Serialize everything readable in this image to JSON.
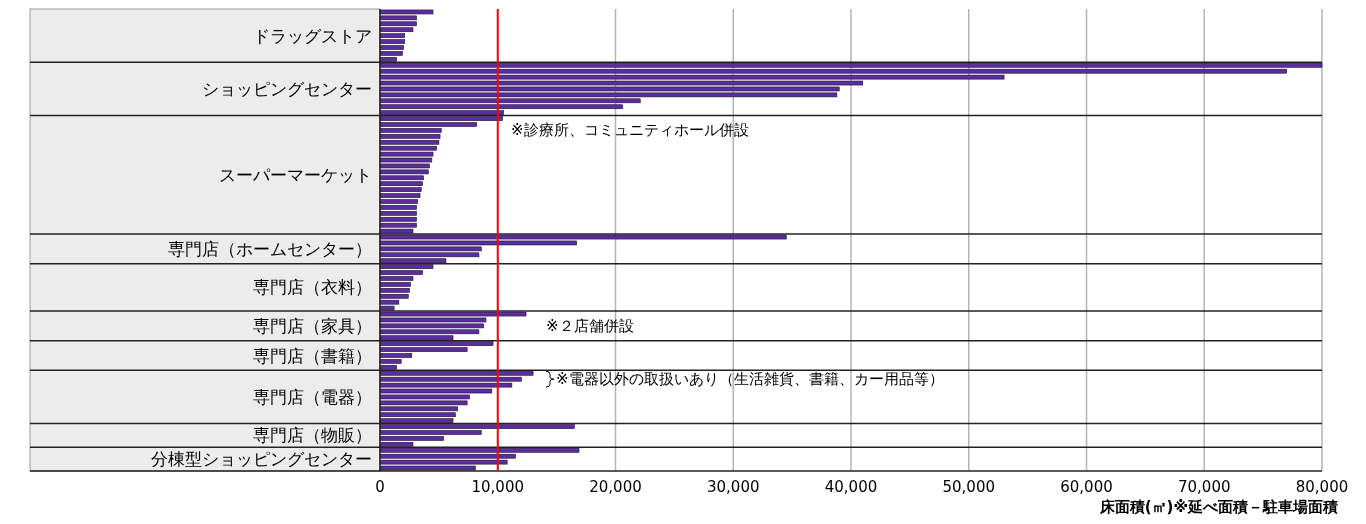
{
  "chart_data": {
    "type": "bar",
    "orientation": "horizontal",
    "xlabel": "床面積(㎡)※延べ面積－駐車場面積",
    "categories": [
      null,
      null,
      null,
      null,
      null,
      null,
      null,
      null,
      null,
      null,
      null,
      null,
      null,
      null,
      null,
      null,
      null,
      null,
      null,
      null,
      null,
      null,
      null,
      null,
      null,
      null,
      null,
      null,
      null,
      null,
      null,
      null,
      null,
      null,
      null,
      null,
      null,
      null,
      null,
      null,
      null,
      null,
      null,
      null,
      null,
      null,
      null,
      null,
      null,
      null,
      null,
      null,
      null,
      null,
      null,
      null,
      null,
      null,
      null,
      null,
      null,
      null,
      null,
      null,
      null,
      null,
      null,
      null,
      null,
      null,
      null,
      null,
      null,
      null,
      null,
      null,
      null,
      null
    ],
    "series": [
      {
        "name": "ドラッグストア",
        "color": "#5c2d9c",
        "values": [
          4500,
          3100,
          3100,
          2800,
          2100,
          2100,
          2000,
          1900,
          1400,
          null,
          null,
          null,
          null,
          null,
          null,
          null,
          null,
          null,
          null,
          null,
          null,
          null,
          null,
          null,
          null,
          null,
          null,
          null,
          null,
          null,
          null,
          null,
          null,
          null,
          null,
          null,
          null,
          null,
          null,
          null,
          null,
          null,
          null,
          null,
          null,
          null,
          null,
          null,
          null,
          null,
          null,
          null,
          null,
          null,
          null,
          null,
          null,
          null,
          null,
          null,
          null,
          null,
          null,
          null,
          null,
          null,
          null,
          null,
          null,
          null,
          null,
          null,
          null,
          null,
          null,
          null,
          null,
          null
        ]
      },
      {
        "name": "ショッピングセンター",
        "color": "#5c2d9c",
        "values": [
          null,
          null,
          null,
          null,
          null,
          null,
          null,
          null,
          null,
          80000,
          77000,
          53000,
          41000,
          39000,
          38800,
          22100,
          20600,
          10500,
          null,
          null,
          null,
          null,
          null,
          null,
          null,
          null,
          null,
          null,
          null,
          null,
          null,
          null,
          null,
          null,
          null,
          null,
          null,
          null,
          null,
          null,
          null,
          null,
          null,
          null,
          null,
          null,
          null,
          null,
          null,
          null,
          null,
          null,
          null,
          null,
          null,
          null,
          null,
          null,
          null,
          null,
          null,
          null,
          null,
          null,
          null,
          null,
          null,
          null,
          null,
          null,
          null,
          null,
          null,
          null,
          null,
          null,
          null,
          null
        ]
      },
      {
        "name": "スーパーマーケット",
        "color": "#5c2d9c",
        "values": [
          null,
          null,
          null,
          null,
          null,
          null,
          null,
          null,
          null,
          null,
          null,
          null,
          null,
          null,
          null,
          null,
          null,
          null,
          10400,
          8200,
          5200,
          5100,
          5000,
          4800,
          4500,
          4400,
          4200,
          4100,
          3700,
          3600,
          3500,
          3400,
          3200,
          3100,
          3100,
          3100,
          3100,
          2800,
          null,
          null,
          null,
          null,
          null,
          null,
          null,
          null,
          null,
          null,
          null,
          null,
          null,
          null,
          null,
          null,
          null,
          null,
          null,
          null,
          null,
          null,
          null,
          null,
          null,
          null,
          null,
          null,
          null,
          null,
          null,
          null,
          null,
          null,
          null,
          null,
          null,
          null,
          null,
          null
        ]
      },
      {
        "name": "専門店（ホームセンター）",
        "color": "#5c2d9c",
        "values": [
          null,
          null,
          null,
          null,
          null,
          null,
          null,
          null,
          null,
          null,
          null,
          null,
          null,
          null,
          null,
          null,
          null,
          null,
          null,
          null,
          null,
          null,
          null,
          null,
          null,
          null,
          null,
          null,
          null,
          null,
          null,
          null,
          null,
          null,
          null,
          null,
          null,
          null,
          34500,
          16700,
          8600,
          8400,
          5600,
          null,
          null,
          null,
          null,
          null,
          null,
          null,
          null,
          null,
          null,
          null,
          null,
          null,
          null,
          null,
          null,
          null,
          null,
          null,
          null,
          null,
          null,
          null,
          null,
          null,
          null,
          null,
          null,
          null,
          null,
          null,
          null,
          null,
          null,
          null
        ]
      },
      {
        "name": "専門店（衣料）",
        "color": "#5c2d9c",
        "values": [
          null,
          null,
          null,
          null,
          null,
          null,
          null,
          null,
          null,
          null,
          null,
          null,
          null,
          null,
          null,
          null,
          null,
          null,
          null,
          null,
          null,
          null,
          null,
          null,
          null,
          null,
          null,
          null,
          null,
          null,
          null,
          null,
          null,
          null,
          null,
          null,
          null,
          null,
          null,
          null,
          null,
          null,
          null,
          4500,
          3600,
          2800,
          2600,
          2500,
          2400,
          1600,
          1200,
          null,
          null,
          null,
          null,
          null,
          null,
          null,
          null,
          null,
          null,
          null,
          null,
          null,
          null,
          null,
          null,
          null,
          null,
          null,
          null,
          null,
          null,
          null,
          null,
          null,
          null,
          null
        ]
      },
      {
        "name": "専門店（家具）",
        "color": "#5c2d9c",
        "values": [
          null,
          null,
          null,
          null,
          null,
          null,
          null,
          null,
          null,
          null,
          null,
          null,
          null,
          null,
          null,
          null,
          null,
          null,
          null,
          null,
          null,
          null,
          null,
          null,
          null,
          null,
          null,
          null,
          null,
          null,
          null,
          null,
          null,
          null,
          null,
          null,
          null,
          null,
          null,
          null,
          null,
          null,
          null,
          null,
          null,
          null,
          null,
          null,
          null,
          null,
          null,
          12400,
          9000,
          8800,
          8400,
          6200,
          null,
          null,
          null,
          null,
          null,
          null,
          null,
          null,
          null,
          null,
          null,
          null,
          null,
          null,
          null,
          null,
          null,
          null,
          null,
          null,
          null,
          null
        ]
      },
      {
        "name": "専門店（書籍）",
        "color": "#5c2d9c",
        "values": [
          null,
          null,
          null,
          null,
          null,
          null,
          null,
          null,
          null,
          null,
          null,
          null,
          null,
          null,
          null,
          null,
          null,
          null,
          null,
          null,
          null,
          null,
          null,
          null,
          null,
          null,
          null,
          null,
          null,
          null,
          null,
          null,
          null,
          null,
          null,
          null,
          null,
          null,
          null,
          null,
          null,
          null,
          null,
          null,
          null,
          null,
          null,
          null,
          null,
          null,
          null,
          null,
          null,
          null,
          null,
          null,
          9600,
          7400,
          2700,
          1800,
          1400,
          null,
          null,
          null,
          null,
          null,
          null,
          null,
          null,
          null,
          null,
          null,
          null,
          null,
          null,
          null,
          null,
          null
        ]
      },
      {
        "name": "専門店（電器）",
        "color": "#5c2d9c",
        "values": [
          null,
          null,
          null,
          null,
          null,
          null,
          null,
          null,
          null,
          null,
          null,
          null,
          null,
          null,
          null,
          null,
          null,
          null,
          null,
          null,
          null,
          null,
          null,
          null,
          null,
          null,
          null,
          null,
          null,
          null,
          null,
          null,
          null,
          null,
          null,
          null,
          null,
          null,
          null,
          null,
          null,
          null,
          null,
          null,
          null,
          null,
          null,
          null,
          null,
          null,
          null,
          null,
          null,
          null,
          null,
          null,
          null,
          null,
          null,
          null,
          null,
          13000,
          12000,
          11200,
          9500,
          7600,
          7400,
          6600,
          6400,
          6200,
          null,
          null,
          null,
          null,
          null,
          null,
          null,
          null
        ]
      },
      {
        "name": "専門店（物販）",
        "color": "#5c2d9c",
        "values": [
          null,
          null,
          null,
          null,
          null,
          null,
          null,
          null,
          null,
          null,
          null,
          null,
          null,
          null,
          null,
          null,
          null,
          null,
          null,
          null,
          null,
          null,
          null,
          null,
          null,
          null,
          null,
          null,
          null,
          null,
          null,
          null,
          null,
          null,
          null,
          null,
          null,
          null,
          null,
          null,
          null,
          null,
          null,
          null,
          null,
          null,
          null,
          null,
          null,
          null,
          null,
          null,
          null,
          null,
          null,
          null,
          null,
          null,
          null,
          null,
          null,
          null,
          null,
          null,
          null,
          null,
          null,
          null,
          null,
          null,
          16500,
          8600,
          5400,
          2800,
          null,
          null,
          null,
          null
        ]
      },
      {
        "name": "分棟型ショッピングセンター",
        "color": "#5c2d9c",
        "values": [
          null,
          null,
          null,
          null,
          null,
          null,
          null,
          null,
          null,
          null,
          null,
          null,
          null,
          null,
          null,
          null,
          null,
          null,
          null,
          null,
          null,
          null,
          null,
          null,
          null,
          null,
          null,
          null,
          null,
          null,
          null,
          null,
          null,
          null,
          null,
          null,
          null,
          null,
          null,
          null,
          null,
          null,
          null,
          null,
          null,
          null,
          null,
          null,
          null,
          null,
          null,
          null,
          null,
          null,
          null,
          null,
          null,
          null,
          null,
          null,
          null,
          null,
          null,
          null,
          null,
          null,
          null,
          null,
          null,
          null,
          null,
          null,
          null,
          null,
          16900,
          11500,
          10800,
          8100
        ]
      }
    ],
    "xlim": [
      0,
      80000
    ],
    "xticks": [
      0,
      {
        "value": 10000,
        "label": "10,000"
      },
      {
        "value": 20000,
        "label": "20,000"
      },
      {
        "value": 30000,
        "label": "30,000"
      },
      {
        "value": 40000,
        "label": "40,000"
      },
      {
        "value": 50000,
        "label": "50,000"
      },
      {
        "value": 60000,
        "label": "60,000"
      },
      {
        "value": 70000,
        "label": "70,000"
      },
      {
        "value": 80000,
        "label": "80,000"
      }
    ],
    "grid": "x",
    "legend": false,
    "ref_lines": [
      {
        "axis": "x",
        "value": 10000,
        "color": "#ff0000"
      }
    ],
    "annotations": [
      "※診療所、コミュニティホール併設",
      "※２店舗併設",
      "※電器以外の取扱いあり（生活雑貨、書籍、カー用品等）"
    ]
  }
}
